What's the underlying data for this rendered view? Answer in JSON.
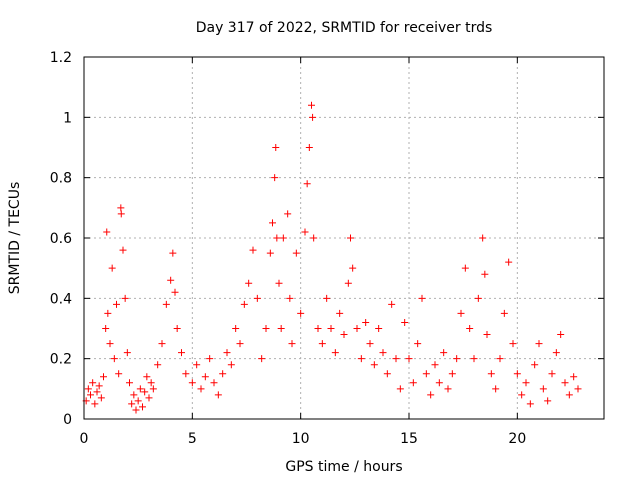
{
  "chart_data": {
    "type": "scatter",
    "title": "Day 317 of 2022, SRMTID for receiver trds",
    "xlabel": "GPS time / hours",
    "ylabel": "SRMTID / TECUs",
    "xlim": [
      0,
      24
    ],
    "ylim": [
      0,
      1.2
    ],
    "x_ticks": [
      0,
      5,
      10,
      15,
      20
    ],
    "x_tick_labels": [
      "0",
      "5",
      "10",
      "15",
      "20"
    ],
    "y_ticks": [
      0,
      0.2,
      0.4,
      0.6,
      0.8,
      1.0,
      1.2
    ],
    "y_tick_labels": [
      "0",
      "0.2",
      "0.4",
      "0.6",
      "0.8",
      "1",
      "1.2"
    ],
    "grid": true,
    "marker": "+",
    "series": [
      {
        "name": "trds",
        "color": "#ff0000",
        "points": [
          [
            0.1,
            0.06
          ],
          [
            0.2,
            0.1
          ],
          [
            0.3,
            0.08
          ],
          [
            0.4,
            0.12
          ],
          [
            0.5,
            0.05
          ],
          [
            0.6,
            0.09
          ],
          [
            0.7,
            0.11
          ],
          [
            0.8,
            0.07
          ],
          [
            0.9,
            0.14
          ],
          [
            1.0,
            0.3
          ],
          [
            1.05,
            0.62
          ],
          [
            1.1,
            0.35
          ],
          [
            1.2,
            0.25
          ],
          [
            1.3,
            0.5
          ],
          [
            1.4,
            0.2
          ],
          [
            1.5,
            0.38
          ],
          [
            1.6,
            0.15
          ],
          [
            1.7,
            0.7
          ],
          [
            1.72,
            0.68
          ],
          [
            1.8,
            0.56
          ],
          [
            1.9,
            0.4
          ],
          [
            2.0,
            0.22
          ],
          [
            2.1,
            0.12
          ],
          [
            2.2,
            0.05
          ],
          [
            2.3,
            0.08
          ],
          [
            2.4,
            0.03
          ],
          [
            2.5,
            0.06
          ],
          [
            2.6,
            0.1
          ],
          [
            2.7,
            0.04
          ],
          [
            2.8,
            0.09
          ],
          [
            2.9,
            0.14
          ],
          [
            3.0,
            0.07
          ],
          [
            3.1,
            0.12
          ],
          [
            3.2,
            0.1
          ],
          [
            3.4,
            0.18
          ],
          [
            3.6,
            0.25
          ],
          [
            3.8,
            0.38
          ],
          [
            4.0,
            0.46
          ],
          [
            4.1,
            0.55
          ],
          [
            4.2,
            0.42
          ],
          [
            4.3,
            0.3
          ],
          [
            4.5,
            0.22
          ],
          [
            4.7,
            0.15
          ],
          [
            5.0,
            0.12
          ],
          [
            5.2,
            0.18
          ],
          [
            5.4,
            0.1
          ],
          [
            5.6,
            0.14
          ],
          [
            5.8,
            0.2
          ],
          [
            6.0,
            0.12
          ],
          [
            6.2,
            0.08
          ],
          [
            6.4,
            0.15
          ],
          [
            6.6,
            0.22
          ],
          [
            6.8,
            0.18
          ],
          [
            7.0,
            0.3
          ],
          [
            7.2,
            0.25
          ],
          [
            7.4,
            0.38
          ],
          [
            7.6,
            0.45
          ],
          [
            7.8,
            0.56
          ],
          [
            8.0,
            0.4
          ],
          [
            8.2,
            0.2
          ],
          [
            8.4,
            0.3
          ],
          [
            8.6,
            0.55
          ],
          [
            8.7,
            0.65
          ],
          [
            8.8,
            0.8
          ],
          [
            8.85,
            0.9
          ],
          [
            8.9,
            0.6
          ],
          [
            9.0,
            0.45
          ],
          [
            9.1,
            0.3
          ],
          [
            9.2,
            0.6
          ],
          [
            9.4,
            0.68
          ],
          [
            9.5,
            0.4
          ],
          [
            9.6,
            0.25
          ],
          [
            9.8,
            0.55
          ],
          [
            10.0,
            0.35
          ],
          [
            10.2,
            0.62
          ],
          [
            10.3,
            0.78
          ],
          [
            10.4,
            0.9
          ],
          [
            10.5,
            1.04
          ],
          [
            10.55,
            1.0
          ],
          [
            10.6,
            0.6
          ],
          [
            10.8,
            0.3
          ],
          [
            11.0,
            0.25
          ],
          [
            11.2,
            0.4
          ],
          [
            11.4,
            0.3
          ],
          [
            11.6,
            0.22
          ],
          [
            11.8,
            0.35
          ],
          [
            12.0,
            0.28
          ],
          [
            12.2,
            0.45
          ],
          [
            12.3,
            0.6
          ],
          [
            12.4,
            0.5
          ],
          [
            12.6,
            0.3
          ],
          [
            12.8,
            0.2
          ],
          [
            13.0,
            0.32
          ],
          [
            13.2,
            0.25
          ],
          [
            13.4,
            0.18
          ],
          [
            13.6,
            0.3
          ],
          [
            13.8,
            0.22
          ],
          [
            14.0,
            0.15
          ],
          [
            14.2,
            0.38
          ],
          [
            14.4,
            0.2
          ],
          [
            14.6,
            0.1
          ],
          [
            14.8,
            0.32
          ],
          [
            15.0,
            0.2
          ],
          [
            15.2,
            0.12
          ],
          [
            15.4,
            0.25
          ],
          [
            15.6,
            0.4
          ],
          [
            15.8,
            0.15
          ],
          [
            16.0,
            0.08
          ],
          [
            16.2,
            0.18
          ],
          [
            16.4,
            0.12
          ],
          [
            16.6,
            0.22
          ],
          [
            16.8,
            0.1
          ],
          [
            17.0,
            0.15
          ],
          [
            17.2,
            0.2
          ],
          [
            17.4,
            0.35
          ],
          [
            17.6,
            0.5
          ],
          [
            17.8,
            0.3
          ],
          [
            18.0,
            0.2
          ],
          [
            18.2,
            0.4
          ],
          [
            18.4,
            0.6
          ],
          [
            18.5,
            0.48
          ],
          [
            18.6,
            0.28
          ],
          [
            18.8,
            0.15
          ],
          [
            19.0,
            0.1
          ],
          [
            19.2,
            0.2
          ],
          [
            19.4,
            0.35
          ],
          [
            19.6,
            0.52
          ],
          [
            19.8,
            0.25
          ],
          [
            20.0,
            0.15
          ],
          [
            20.2,
            0.08
          ],
          [
            20.4,
            0.12
          ],
          [
            20.6,
            0.05
          ],
          [
            20.8,
            0.18
          ],
          [
            21.0,
            0.25
          ],
          [
            21.2,
            0.1
          ],
          [
            21.4,
            0.06
          ],
          [
            21.6,
            0.15
          ],
          [
            21.8,
            0.22
          ],
          [
            22.0,
            0.28
          ],
          [
            22.2,
            0.12
          ],
          [
            22.4,
            0.08
          ],
          [
            22.6,
            0.14
          ],
          [
            22.8,
            0.1
          ]
        ]
      }
    ]
  }
}
